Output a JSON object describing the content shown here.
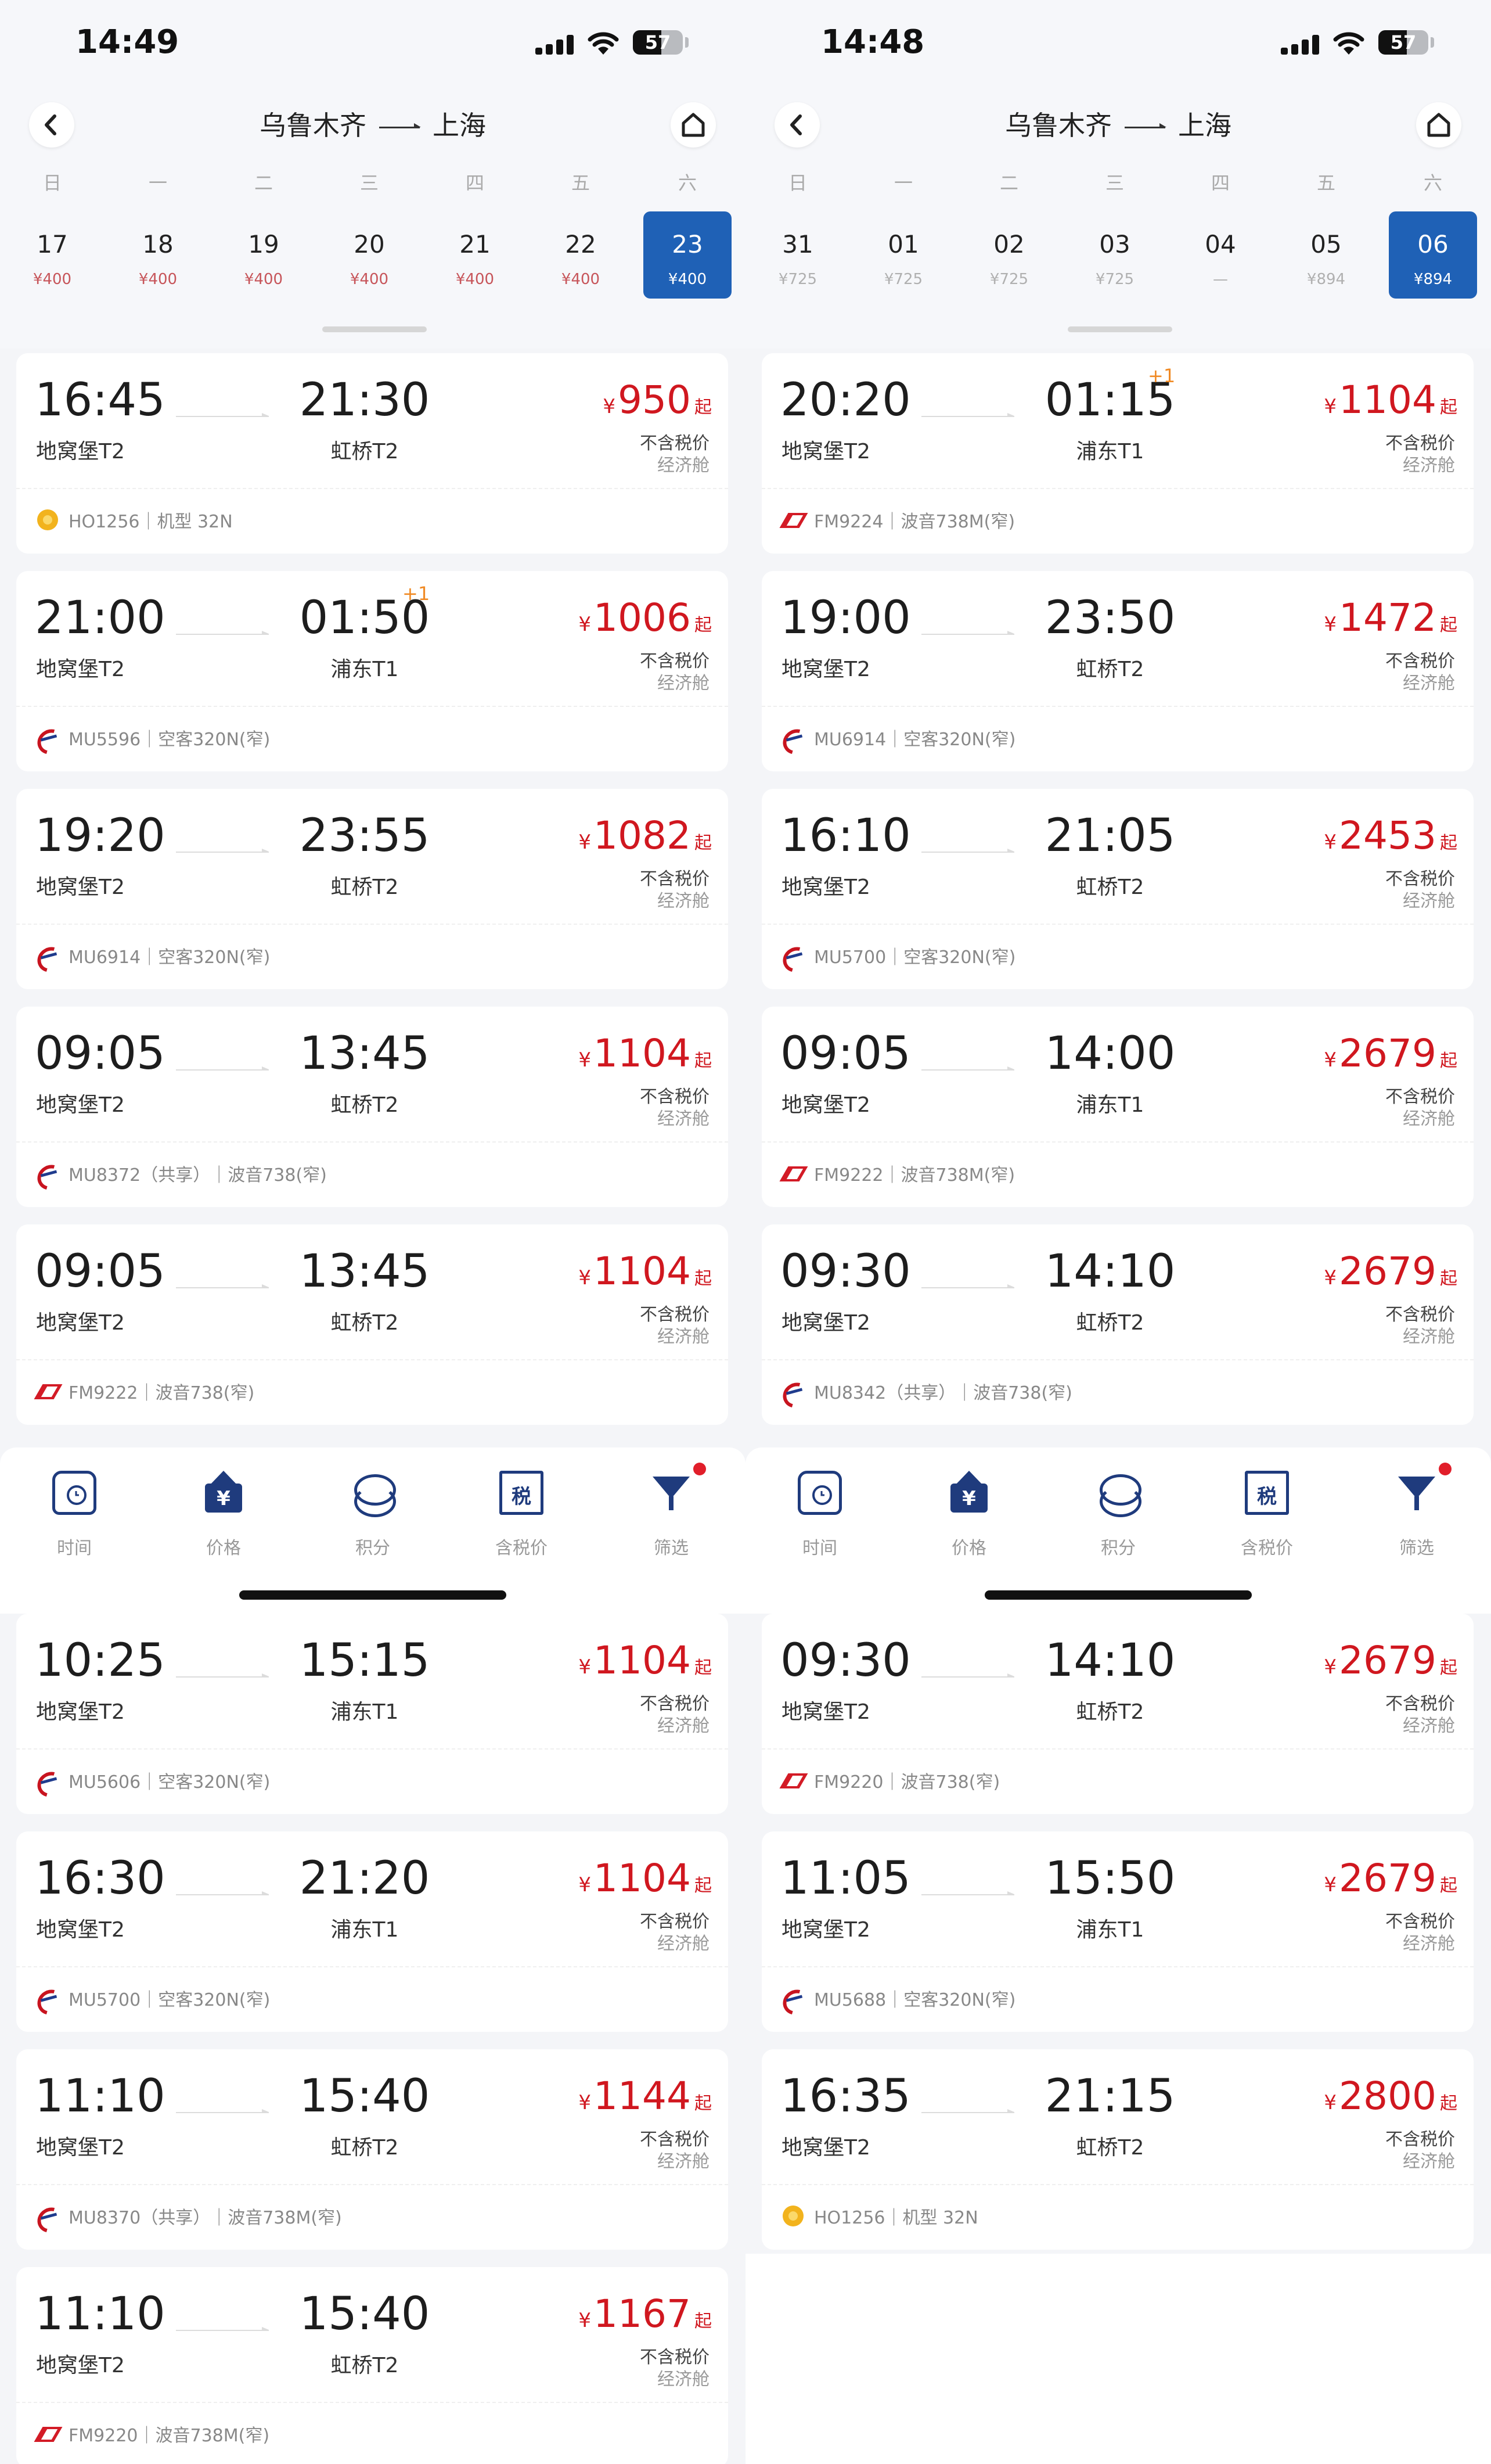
{
  "left": {
    "status": {
      "time": "14:49",
      "battery": "57"
    },
    "header": {
      "from": "乌鲁木齐",
      "to": "上海"
    },
    "weekdays": [
      "日",
      "一",
      "二",
      "三",
      "四",
      "五",
      "六"
    ],
    "dates": [
      {
        "day": "17",
        "price": "¥400"
      },
      {
        "day": "18",
        "price": "¥400"
      },
      {
        "day": "19",
        "price": "¥400"
      },
      {
        "day": "20",
        "price": "¥400"
      },
      {
        "day": "21",
        "price": "¥400"
      },
      {
        "day": "22",
        "price": "¥400"
      },
      {
        "day": "23",
        "price": "¥400"
      }
    ],
    "selected_index": 6,
    "flights_top": [
      {
        "dep": "16:45",
        "dep_ap": "地窝堡T2",
        "arr": "21:30",
        "arr_ap": "虹桥T2",
        "plus": "",
        "price": "950",
        "airline": "ho",
        "info": "HO1256｜机型 32N"
      },
      {
        "dep": "21:00",
        "dep_ap": "地窝堡T2",
        "arr": "01:50",
        "arr_ap": "浦东T1",
        "plus": "+1",
        "price": "1006",
        "airline": "mu",
        "info": "MU5596｜空客320N(窄)"
      },
      {
        "dep": "19:20",
        "dep_ap": "地窝堡T2",
        "arr": "23:55",
        "arr_ap": "虹桥T2",
        "plus": "",
        "price": "1082",
        "airline": "mu",
        "info": "MU6914｜空客320N(窄)"
      },
      {
        "dep": "09:05",
        "dep_ap": "地窝堡T2",
        "arr": "13:45",
        "arr_ap": "虹桥T2",
        "plus": "",
        "price": "1104",
        "airline": "mu",
        "info": "MU8372（共享）｜波音738(窄)"
      },
      {
        "dep": "09:05",
        "dep_ap": "地窝堡T2",
        "arr": "13:45",
        "arr_ap": "虹桥T2",
        "plus": "",
        "price": "1104",
        "airline": "fm",
        "info": "FM9222｜波音738(窄)"
      }
    ],
    "flights_bottom": [
      {
        "dep": "10:25",
        "dep_ap": "地窝堡T2",
        "arr": "15:15",
        "arr_ap": "浦东T1",
        "plus": "",
        "price": "1104",
        "airline": "mu",
        "info": "MU5606｜空客320N(窄)"
      },
      {
        "dep": "16:30",
        "dep_ap": "地窝堡T2",
        "arr": "21:20",
        "arr_ap": "浦东T1",
        "plus": "",
        "price": "1104",
        "airline": "mu",
        "info": "MU5700｜空客320N(窄)"
      },
      {
        "dep": "11:10",
        "dep_ap": "地窝堡T2",
        "arr": "15:40",
        "arr_ap": "虹桥T2",
        "plus": "",
        "price": "1144",
        "airline": "mu",
        "info": "MU8370（共享）｜波音738M(窄)"
      },
      {
        "dep": "11:10",
        "dep_ap": "地窝堡T2",
        "arr": "15:40",
        "arr_ap": "虹桥T2",
        "plus": "",
        "price": "1167",
        "airline": "fm",
        "info": "FM9220｜波音738M(窄)"
      }
    ]
  },
  "right": {
    "status": {
      "time": "14:48",
      "battery": "57"
    },
    "header": {
      "from": "乌鲁木齐",
      "to": "上海"
    },
    "weekdays": [
      "日",
      "一",
      "二",
      "三",
      "四",
      "五",
      "六"
    ],
    "dates": [
      {
        "day": "31",
        "price": "¥725"
      },
      {
        "day": "01",
        "price": "¥725"
      },
      {
        "day": "02",
        "price": "¥725"
      },
      {
        "day": "03",
        "price": "¥725"
      },
      {
        "day": "04",
        "price": "—"
      },
      {
        "day": "05",
        "price": "¥894"
      },
      {
        "day": "06",
        "price": "¥894"
      }
    ],
    "selected_index": 6,
    "flights_top": [
      {
        "dep": "20:20",
        "dep_ap": "地窝堡T2",
        "arr": "01:15",
        "arr_ap": "浦东T1",
        "plus": "+1",
        "price": "1104",
        "airline": "fm",
        "info": "FM9224｜波音738M(窄)"
      },
      {
        "dep": "19:00",
        "dep_ap": "地窝堡T2",
        "arr": "23:50",
        "arr_ap": "虹桥T2",
        "plus": "",
        "price": "1472",
        "airline": "mu",
        "info": "MU6914｜空客320N(窄)"
      },
      {
        "dep": "16:10",
        "dep_ap": "地窝堡T2",
        "arr": "21:05",
        "arr_ap": "虹桥T2",
        "plus": "",
        "price": "2453",
        "airline": "mu",
        "info": "MU5700｜空客320N(窄)"
      },
      {
        "dep": "09:05",
        "dep_ap": "地窝堡T2",
        "arr": "14:00",
        "arr_ap": "浦东T1",
        "plus": "",
        "price": "2679",
        "airline": "fm",
        "info": "FM9222｜波音738M(窄)"
      },
      {
        "dep": "09:30",
        "dep_ap": "地窝堡T2",
        "arr": "14:10",
        "arr_ap": "虹桥T2",
        "plus": "",
        "price": "2679",
        "airline": "mu",
        "info": "MU8342（共享）｜波音738(窄)"
      }
    ],
    "flights_bottom": [
      {
        "dep": "09:30",
        "dep_ap": "地窝堡T2",
        "arr": "14:10",
        "arr_ap": "虹桥T2",
        "plus": "",
        "price": "2679",
        "airline": "fm",
        "info": "FM9220｜波音738(窄)"
      },
      {
        "dep": "11:05",
        "dep_ap": "地窝堡T2",
        "arr": "15:50",
        "arr_ap": "浦东T1",
        "plus": "",
        "price": "2679",
        "airline": "mu",
        "info": "MU5688｜空客320N(窄)"
      },
      {
        "dep": "16:35",
        "dep_ap": "地窝堡T2",
        "arr": "21:15",
        "arr_ap": "虹桥T2",
        "plus": "",
        "price": "2800",
        "airline": "ho",
        "info": "HO1256｜机型 32N"
      }
    ]
  },
  "common": {
    "yen": "¥",
    "qi": "起",
    "tax": "不含税价",
    "cabin": "经济舱",
    "nav": [
      {
        "label": "时间",
        "icon": "clock-icon"
      },
      {
        "label": "价格",
        "icon": "price-icon"
      },
      {
        "label": "积分",
        "icon": "points-icon"
      },
      {
        "label": "含税价",
        "icon": "tax-icon"
      },
      {
        "label": "筛选",
        "icon": "filter-icon"
      }
    ],
    "price_glyph": "¥",
    "tax_glyph": "税"
  }
}
